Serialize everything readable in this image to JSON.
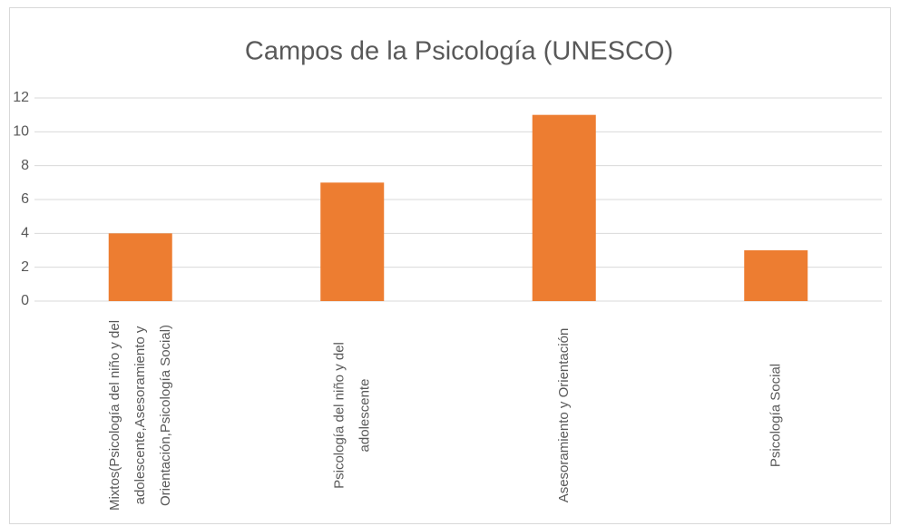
{
  "chart_data": {
    "type": "bar",
    "title": "Campos de la Psicología (UNESCO)",
    "categories": [
      "Mixtos(Psicología del niño y del adolescente,Asesoramiento y Orientación,Psicología Social)",
      "Psicología del niño y del adolescente",
      "Asesoramiento y Orientación",
      "Psicología Social"
    ],
    "values": [
      4,
      7,
      11,
      3
    ],
    "color": "#ed7d31",
    "ylim": [
      0,
      12
    ],
    "yticks": [
      0,
      2,
      4,
      6,
      8,
      10,
      12
    ],
    "grid": true
  }
}
